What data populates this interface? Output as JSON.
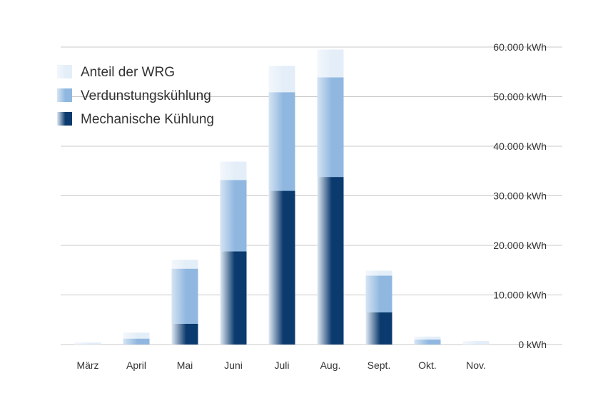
{
  "chart_data": {
    "type": "bar",
    "stacked": true,
    "categories": [
      "März",
      "April",
      "Mai",
      "Juni",
      "Juli",
      "Aug.",
      "Sept.",
      "Okt.",
      "Nov."
    ],
    "series": [
      {
        "name": "Mechanische Kühlung",
        "values": [
          0,
          0,
          4200,
          18800,
          31000,
          33800,
          6500,
          0,
          0
        ],
        "color": "#0b3a6e",
        "gradient_from": "#e2eaf4"
      },
      {
        "name": "Verdunstungskühlung",
        "values": [
          0,
          1200,
          11100,
          14400,
          19900,
          20100,
          7400,
          1000,
          0
        ],
        "color": "#8fb7e0",
        "gradient_from": "#d5e4f3"
      },
      {
        "name": "Anteil der WRG",
        "values": [
          400,
          1200,
          1800,
          3700,
          5300,
          5600,
          1000,
          600,
          700
        ],
        "color": "#e4eef8",
        "gradient_from": "#f3f7fc"
      }
    ],
    "ylim": [
      0,
      60000
    ],
    "yticks": [
      0,
      10000,
      20000,
      30000,
      40000,
      50000,
      60000
    ],
    "ytick_labels": [
      "0 kWh",
      "10.000 kWh",
      "20.000 kWh",
      "30.000 kWh",
      "40.000 kWh",
      "50.000 kWh",
      "60.000 kWh"
    ],
    "y_axis_side": "right",
    "grid": true,
    "legend_position": "top-left",
    "legend_order": [
      "Anteil der WRG",
      "Verdunstungskühlung",
      "Mechanische Kühlung"
    ]
  }
}
